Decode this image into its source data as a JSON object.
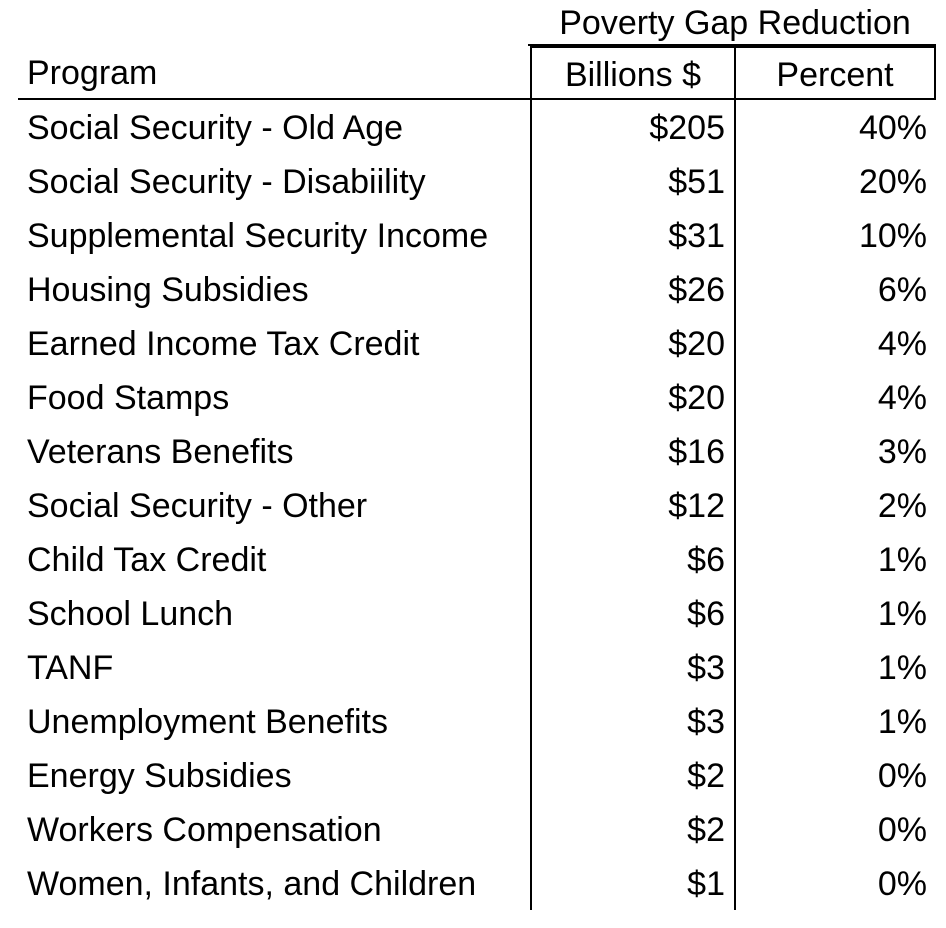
{
  "table": {
    "super_header": "Poverty Gap Reduction",
    "headers": {
      "program": "Program",
      "billions": "Billions $",
      "percent": "Percent"
    },
    "rows": [
      {
        "program": "Social Security - Old Age",
        "billions": "$205",
        "percent": "40%"
      },
      {
        "program": "Social Security - Disabiility",
        "billions": "$51",
        "percent": "20%"
      },
      {
        "program": "Supplemental Security Income",
        "billions": "$31",
        "percent": "10%"
      },
      {
        "program": "Housing Subsidies",
        "billions": "$26",
        "percent": "6%"
      },
      {
        "program": "Earned Income Tax Credit",
        "billions": "$20",
        "percent": "4%"
      },
      {
        "program": "Food Stamps",
        "billions": "$20",
        "percent": "4%"
      },
      {
        "program": "Veterans Benefits",
        "billions": "$16",
        "percent": "3%"
      },
      {
        "program": "Social Security - Other",
        "billions": "$12",
        "percent": "2%"
      },
      {
        "program": "Child Tax Credit",
        "billions": "$6",
        "percent": "1%"
      },
      {
        "program": "School Lunch",
        "billions": "$6",
        "percent": "1%"
      },
      {
        "program": "TANF",
        "billions": "$3",
        "percent": "1%"
      },
      {
        "program": "Unemployment Benefits",
        "billions": "$3",
        "percent": "1%"
      },
      {
        "program": "Energy Subsidies",
        "billions": "$2",
        "percent": "0%"
      },
      {
        "program": "Workers Compensation",
        "billions": "$2",
        "percent": "0%"
      },
      {
        "program": "Women, Infants, and Children",
        "billions": "$1",
        "percent": "0%"
      }
    ]
  },
  "chart_data": {
    "type": "table",
    "title": "Poverty Gap Reduction",
    "columns": [
      "Program",
      "Billions $",
      "Percent"
    ],
    "categories": [
      "Social Security - Old Age",
      "Social Security - Disabiility",
      "Supplemental Security Income",
      "Housing Subsidies",
      "Earned Income Tax Credit",
      "Food Stamps",
      "Veterans Benefits",
      "Social Security - Other",
      "Child Tax Credit",
      "School Lunch",
      "TANF",
      "Unemployment Benefits",
      "Energy Subsidies",
      "Workers Compensation",
      "Women, Infants, and Children"
    ],
    "series": [
      {
        "name": "Billions $",
        "values": [
          205,
          51,
          31,
          26,
          20,
          20,
          16,
          12,
          6,
          6,
          3,
          3,
          2,
          2,
          1
        ]
      },
      {
        "name": "Percent",
        "values": [
          40,
          20,
          10,
          6,
          4,
          4,
          3,
          2,
          1,
          1,
          1,
          1,
          0,
          0,
          0
        ]
      }
    ]
  }
}
